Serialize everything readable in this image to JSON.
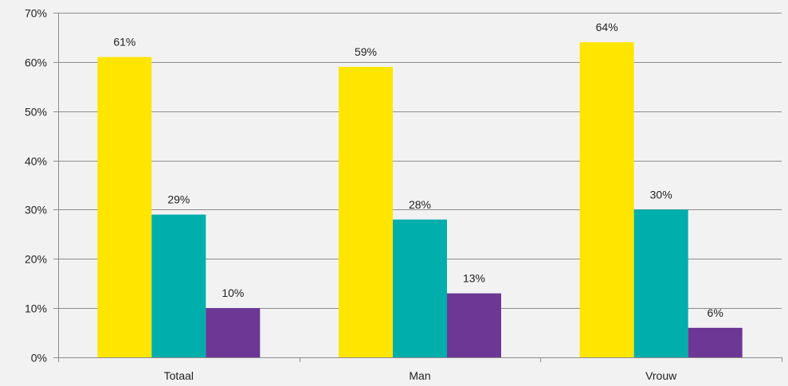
{
  "chart_data": {
    "type": "bar",
    "title": "",
    "xlabel": "",
    "ylabel": "",
    "categories": [
      "Totaal",
      "Man",
      "Vrouw"
    ],
    "series": [
      {
        "values": [
          61,
          59,
          64
        ],
        "color": "#ffe500"
      },
      {
        "values": [
          29,
          28,
          30
        ],
        "color": "#00aeac"
      },
      {
        "values": [
          10,
          13,
          6
        ],
        "color": "#6d3795"
      }
    ],
    "data_labels": [
      [
        "61%",
        "59%",
        "64%"
      ],
      [
        "29%",
        "28%",
        "30%"
      ],
      [
        "10%",
        "13%",
        "6%"
      ]
    ],
    "ylim": [
      0,
      70
    ],
    "y_ticks": [
      0,
      10,
      20,
      30,
      40,
      50,
      60,
      70
    ],
    "y_tick_labels": [
      "0%",
      "10%",
      "20%",
      "30%",
      "40%",
      "50%",
      "60%",
      "70%"
    ],
    "grid": true,
    "legend": "none"
  }
}
